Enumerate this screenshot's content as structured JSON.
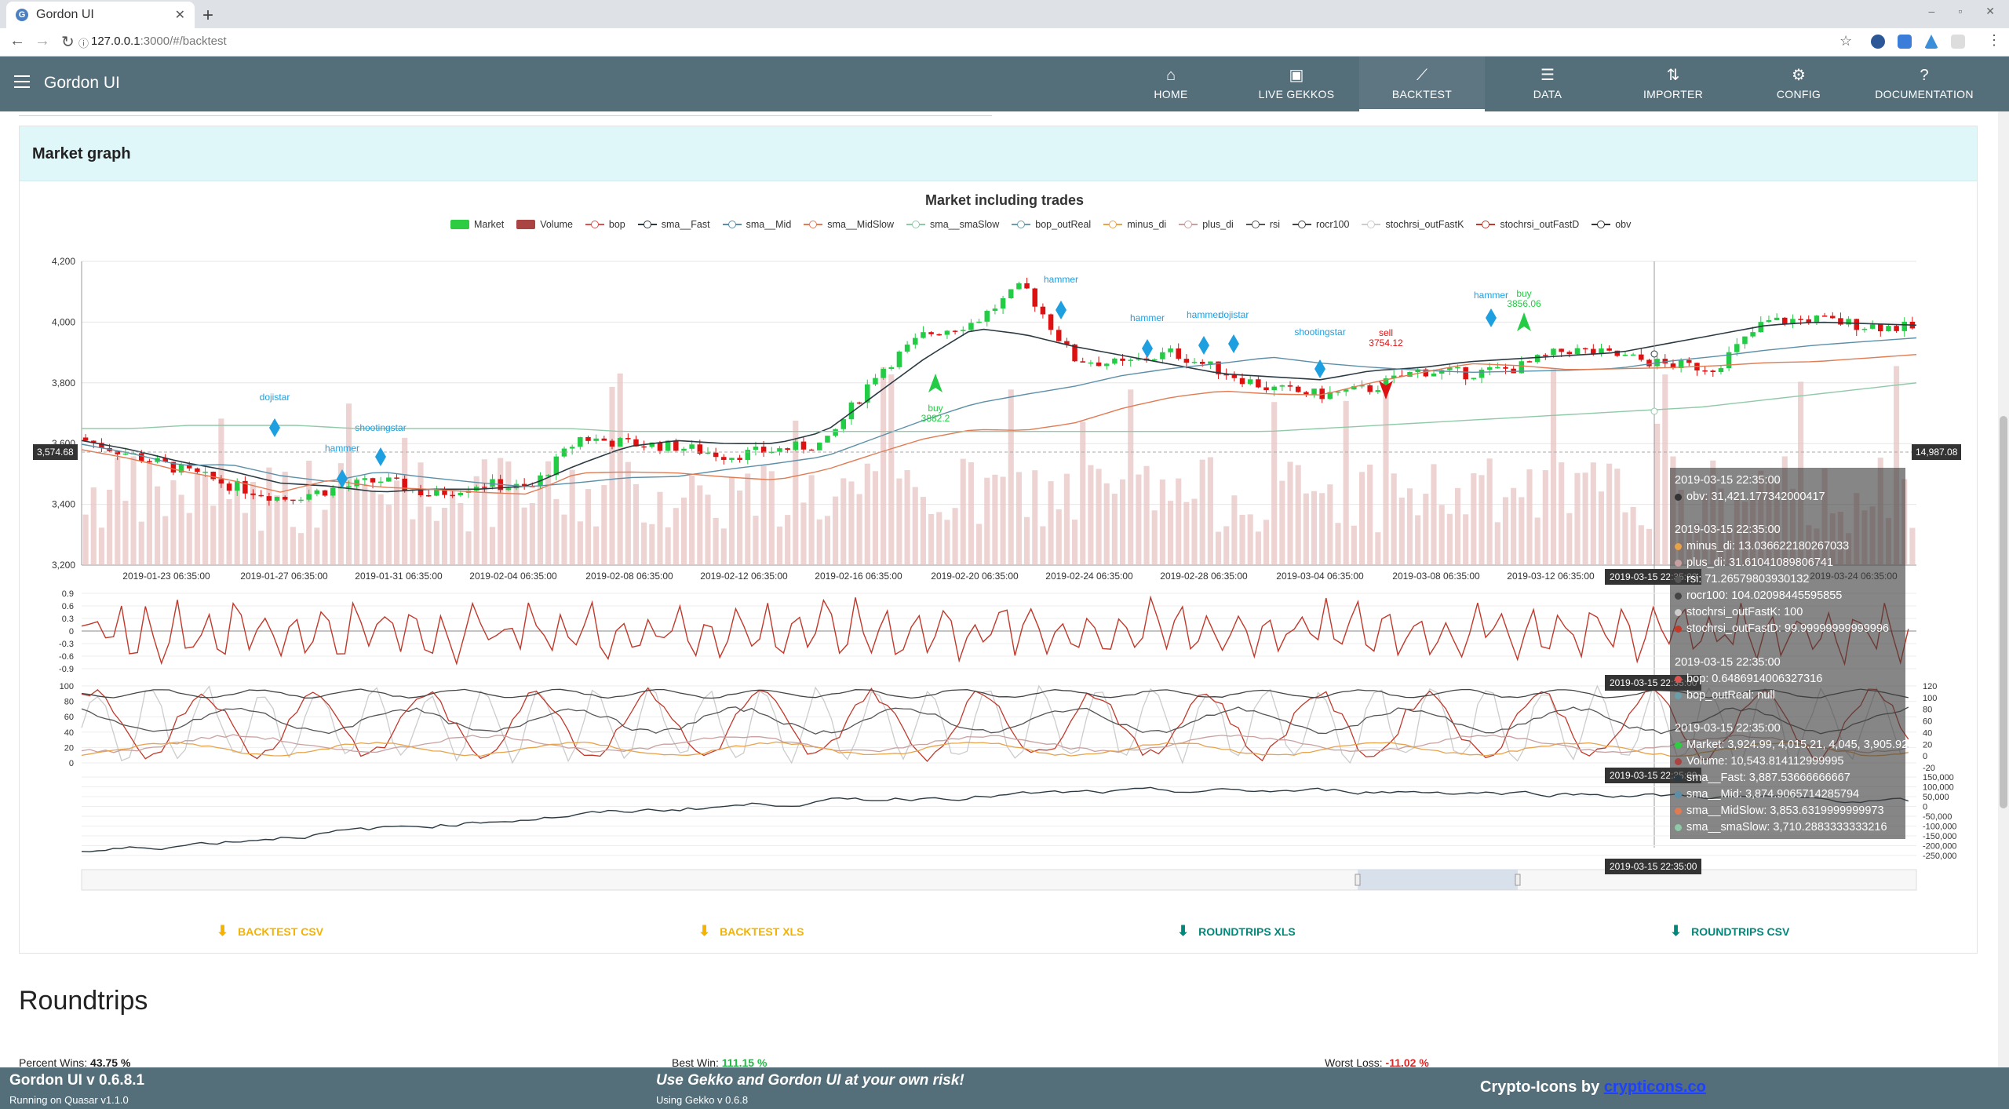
{
  "browser": {
    "tab_title": "Gordon UI",
    "tab_favicon": "G",
    "url_host": "127.0.0.1",
    "url_rest": ":3000/#/backtest"
  },
  "app": {
    "title": "Gordon UI",
    "nav": [
      {
        "label": "HOME",
        "icon": "home-icon",
        "glyph": "⌂"
      },
      {
        "label": "LIVE GEKKOS",
        "icon": "cast-icon",
        "glyph": "▣"
      },
      {
        "label": "BACKTEST",
        "icon": "trend-icon",
        "glyph": "⟋"
      },
      {
        "label": "DATA",
        "icon": "list-icon",
        "glyph": "☰"
      },
      {
        "label": "IMPORTER",
        "icon": "import-icon",
        "glyph": "⇅"
      },
      {
        "label": "CONFIG",
        "icon": "gear-icon",
        "glyph": "⚙"
      },
      {
        "label": "DOCUMENTATION",
        "icon": "help-icon",
        "glyph": "?"
      }
    ],
    "active_nav": "BACKTEST"
  },
  "market_graph": {
    "section_title": "Market graph",
    "chart_title": "Market including trades",
    "legend": [
      {
        "label": "Market",
        "color": "#2ecc40",
        "kind": "box"
      },
      {
        "label": "Volume",
        "color": "#a94442",
        "kind": "box"
      },
      {
        "label": "bop",
        "color": "#d9534f",
        "kind": "line"
      },
      {
        "label": "sma__Fast",
        "color": "#2b3a42",
        "kind": "line"
      },
      {
        "label": "sma__Mid",
        "color": "#5b8fa8",
        "kind": "line"
      },
      {
        "label": "sma__MidSlow",
        "color": "#e07b53",
        "kind": "line"
      },
      {
        "label": "sma__smaSlow",
        "color": "#8fc9a8",
        "kind": "line"
      },
      {
        "label": "bop_outReal",
        "color": "#6b9ea8",
        "kind": "line"
      },
      {
        "label": "minus_di",
        "color": "#e8a24a",
        "kind": "line"
      },
      {
        "label": "plus_di",
        "color": "#c9a0a0",
        "kind": "line"
      },
      {
        "label": "rsi",
        "color": "#555555",
        "kind": "line"
      },
      {
        "label": "rocr100",
        "color": "#444444",
        "kind": "line"
      },
      {
        "label": "stochrsi_outFastK",
        "color": "#cccccc",
        "kind": "line"
      },
      {
        "label": "stochrsi_outFastD",
        "color": "#c0392b",
        "kind": "line"
      },
      {
        "label": "obv",
        "color": "#333333",
        "kind": "line"
      }
    ],
    "price_axis": [
      "4,200",
      "4,000",
      "3,800",
      "3,600",
      "3,400",
      "3,200"
    ],
    "date_axis": [
      "2019-01-23 06:35:00",
      "2019-01-27 06:35:00",
      "2019-01-31 06:35:00",
      "2019-02-04 06:35:00",
      "2019-02-08 06:35:00",
      "2019-02-12 06:35:00",
      "2019-02-16 06:35:00",
      "2019-02-20 06:35:00",
      "2019-02-24 06:35:00",
      "2019-02-28 06:35:00",
      "2019-03-04 06:35:00",
      "2019-03-08 06:35:00",
      "2019-03-12 06:35:00",
      "2019-03-24 06:35:00"
    ],
    "bop_axis": [
      "0.9",
      "0.6",
      "0.3",
      "0",
      "-0.3",
      "-0.6",
      "-0.9"
    ],
    "osc_axis_left": [
      "100",
      "80",
      "60",
      "40",
      "20",
      "0"
    ],
    "osc_axis_right": [
      "120",
      "100",
      "80",
      "60",
      "40",
      "20",
      "0",
      "-20"
    ],
    "obv_axis_right": [
      "150,000",
      "100,000",
      "50,000",
      "0",
      "-50,000",
      "-100,000",
      "-150,000",
      "-200,000",
      "-250,000"
    ],
    "crosshair_price": "3,574.68",
    "crosshair_volume": "14,987.08",
    "crosshair_time": "2019-03-15 22:35:00",
    "annotations": [
      {
        "label": "dojistar",
        "kind": "pattern"
      },
      {
        "label": "hammer",
        "kind": "pattern"
      },
      {
        "label": "shootingstar",
        "kind": "pattern"
      },
      {
        "label": "hammer",
        "kind": "pattern"
      },
      {
        "label": "buy",
        "price": "3882.2",
        "kind": "buy"
      },
      {
        "label": "hammer",
        "kind": "pattern"
      },
      {
        "label": "hammer",
        "kind": "pattern"
      },
      {
        "label": "dojistar",
        "kind": "pattern"
      },
      {
        "label": "shootingstar",
        "kind": "pattern"
      },
      {
        "label": "sell",
        "price": "3754.12",
        "kind": "sell"
      },
      {
        "label": "buy",
        "price": "3856.06",
        "kind": "buy"
      },
      {
        "label": "hammer",
        "kind": "pattern"
      }
    ],
    "tooltip": {
      "time": "2019-03-15 22:35:00",
      "obv_group": [
        {
          "label": "obv: 31,421.177342000417",
          "color": "#333333"
        }
      ],
      "osc_group": [
        {
          "label": "minus_di: 13.036622180267033",
          "color": "#e8a24a"
        },
        {
          "label": "plus_di: 31.61041089806741",
          "color": "#c9a0a0"
        },
        {
          "label": "rsi: 71.26579803930132",
          "color": "#555555"
        },
        {
          "label": "rocr100: 104.02098445595855",
          "color": "#444444"
        },
        {
          "label": "stochrsi_outFastK: 100",
          "color": "#cccccc"
        },
        {
          "label": "stochrsi_outFastD: 99.99999999999996",
          "color": "#c0392b"
        }
      ],
      "bop_group": [
        {
          "label": "bop: 0.6486914006327316",
          "color": "#d9534f"
        },
        {
          "label": "bop_outReal: null",
          "color": "#6b9ea8"
        }
      ],
      "market_group": [
        {
          "label": "Market: 3,924.99, 4,015.21, 4,045, 3,905.92",
          "color": "#2ecc40"
        },
        {
          "label": "Volume: 10,543.814112999995",
          "color": "#a94442"
        },
        {
          "label": "sma__Fast: 3,887.53666666667",
          "color": "#2b3a42"
        },
        {
          "label": "sma__Mid: 3,874.9065714285794",
          "color": "#5b8fa8"
        },
        {
          "label": "sma__MidSlow: 3,853.6319999999973",
          "color": "#e07b53"
        },
        {
          "label": "sma__smaSlow: 3,710.2883333333216",
          "color": "#8fc9a8"
        }
      ]
    }
  },
  "downloads": [
    {
      "label": "BACKTEST CSV",
      "color": "#f5b301"
    },
    {
      "label": "BACKTEST XLS",
      "color": "#f5b301"
    },
    {
      "label": "ROUNDTRIPS XLS",
      "color": "#00897b"
    },
    {
      "label": "ROUNDTRIPS CSV",
      "color": "#00897b"
    }
  ],
  "roundtrips": {
    "title": "Roundtrips",
    "percent_wins_label": "Percent Wins:",
    "percent_wins": "43.75 %",
    "best_win_label": "Best Win:",
    "best_win": "111.15 %",
    "worst_loss_label": "Worst Loss:",
    "worst_loss": "-11.02 %"
  },
  "footer": {
    "version": "Gordon UI v 0.6.8.1",
    "runtime": "Running on Quasar v1.1.0",
    "warning": "Use Gekko and Gordon UI at your own risk!",
    "gekko": "Using Gekko v 0.6.8",
    "credits_text": "Crypto-Icons by",
    "credits_link": "crypticons.co"
  },
  "chart_data": {
    "type": "candlestick",
    "title": "Market including trades",
    "ylim": [
      3200,
      4200
    ],
    "x_range": [
      "2019-01-21 06:35:00",
      "2019-03-25 06:35:00"
    ],
    "series_overview": [
      {
        "name": "Market",
        "approx_close": [
          3610,
          3560,
          3510,
          3460,
          3420,
          3450,
          3480,
          3430,
          3470,
          3450,
          3620,
          3600,
          3590,
          3560,
          3580,
          3600,
          3830,
          3960,
          4000,
          4120,
          3880,
          3860,
          3900,
          3840,
          3780,
          3760,
          3780,
          3840,
          3830,
          3850,
          3910,
          3890,
          3860,
          3850,
          4000,
          4010,
          3990,
          3980
        ]
      },
      {
        "name": "sma__Fast",
        "approx": [
          3610,
          3580,
          3540,
          3510,
          3470,
          3460,
          3440,
          3450,
          3450,
          3460,
          3530,
          3590,
          3610,
          3600,
          3600,
          3640,
          3760,
          3880,
          3980,
          3960,
          3920,
          3890,
          3860,
          3830,
          3820,
          3810,
          3840,
          3850,
          3870,
          3880,
          3890,
          3900,
          3930,
          3960,
          3990,
          4000,
          3995,
          3990
        ]
      },
      {
        "name": "sma__smaSlow",
        "approx": [
          3650,
          3650,
          3660,
          3660,
          3660,
          3650,
          3650,
          3650,
          3650,
          3650,
          3640,
          3640,
          3640,
          3640,
          3640,
          3640,
          3640,
          3640,
          3640,
          3640,
          3640,
          3640,
          3640,
          3650,
          3660,
          3670,
          3680,
          3690,
          3700,
          3710,
          3720,
          3740,
          3760,
          3780,
          3800
        ]
      }
    ]
  }
}
